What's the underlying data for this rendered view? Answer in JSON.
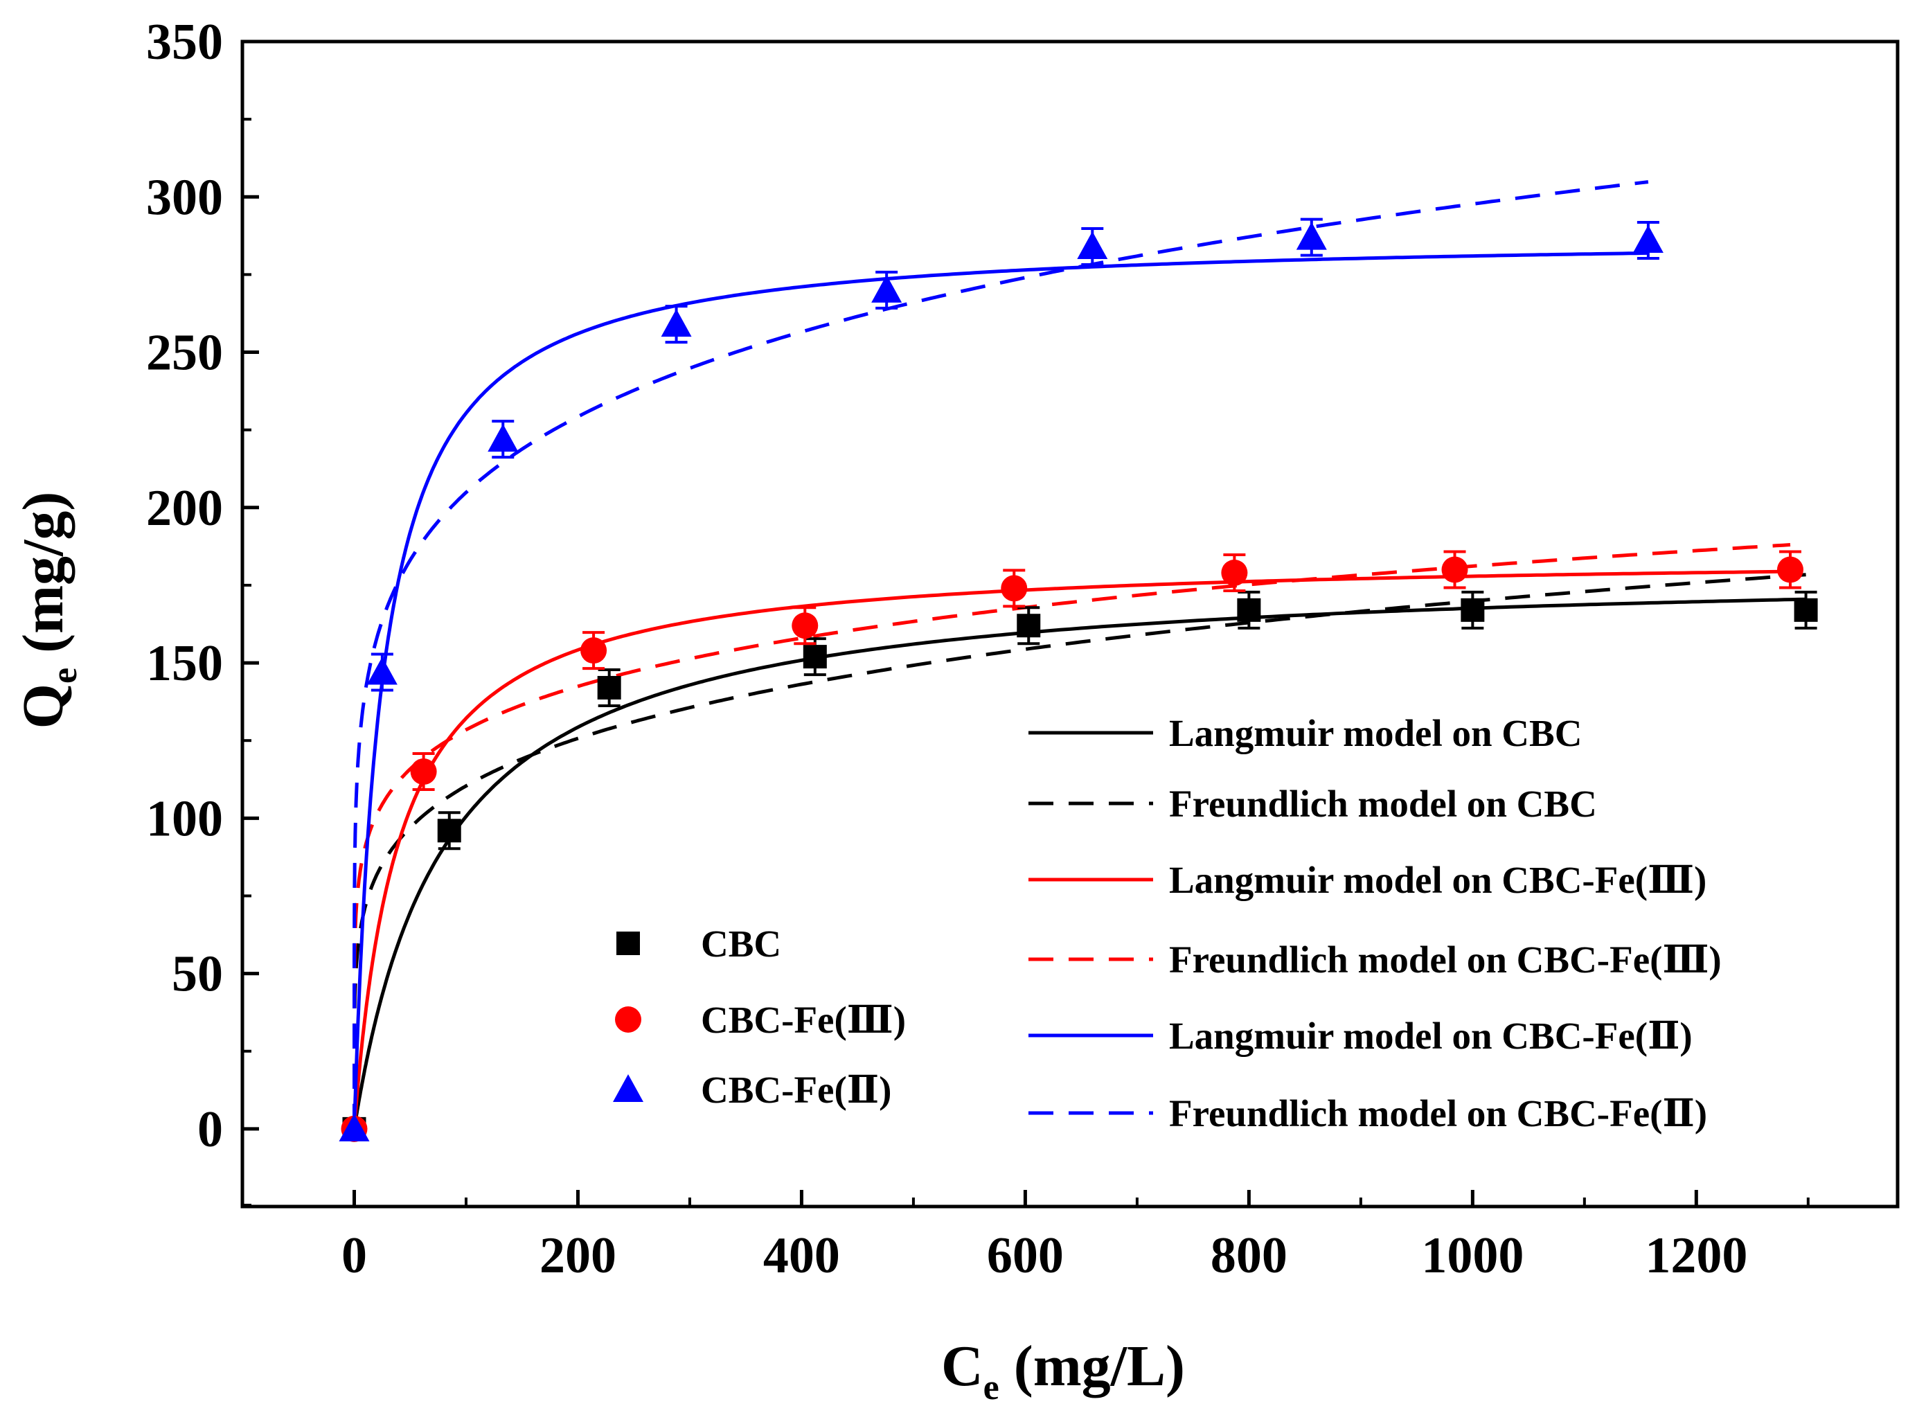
{
  "chart_data": {
    "type": "scatter",
    "title": "",
    "xlabel": "C",
    "xlabel_sub": "e",
    "xlabel_unit": " (mg/L)",
    "ylabel": "Q",
    "ylabel_sub": "e",
    "ylabel_unit": " (mg/g)",
    "xlim": [
      -100,
      1380
    ],
    "ylim": [
      -25,
      350
    ],
    "x_ticks": [
      0,
      200,
      400,
      600,
      800,
      1000,
      1200
    ],
    "x_tick_labels": [
      "0",
      "200",
      "400",
      "600",
      "800",
      "1000",
      "1200"
    ],
    "y_ticks": [
      0,
      50,
      100,
      150,
      200,
      250,
      300,
      350
    ],
    "y_tick_labels": [
      "0",
      "50",
      "100",
      "150",
      "200",
      "250",
      "300",
      "350"
    ],
    "grid": false,
    "series": [
      {
        "name": "CBC",
        "marker": "square",
        "color": "#000000",
        "x": [
          0,
          85,
          228,
          412,
          603,
          800,
          1000,
          1298
        ],
        "y": [
          0,
          96,
          142,
          152,
          162,
          167,
          167,
          167
        ]
      },
      {
        "name": "CBC-Fe(Ⅲ)",
        "marker": "circle",
        "color": "#ff0000",
        "x": [
          0,
          62,
          214,
          403,
          590,
          787,
          984,
          1284
        ],
        "y": [
          0,
          115,
          154,
          162,
          174,
          179,
          180,
          180
        ]
      },
      {
        "name": "CBC-Fe(Ⅱ)",
        "marker": "triangle",
        "color": "#0000ff",
        "x": [
          0,
          25,
          133,
          288,
          476,
          660,
          856,
          1157
        ],
        "y": [
          0,
          147,
          222,
          259,
          270,
          284,
          287,
          286
        ]
      }
    ],
    "fits": [
      {
        "name": "Langmuir model on CBC",
        "model": "langmuir",
        "color": "#000000",
        "dash": false,
        "qmax": 181,
        "K": 0.0125,
        "xmax": 1298
      },
      {
        "name": "Freundlich model on CBC",
        "model": "freundlich",
        "color": "#000000",
        "dash": true,
        "Kf": 46.6,
        "n": 5.34,
        "xmax": 1298
      },
      {
        "name": "Langmuir model on CBC-Fe(Ⅲ)",
        "model": "langmuir",
        "color": "#ff0000",
        "dash": false,
        "qmax": 185,
        "K": 0.025,
        "xmax": 1284
      },
      {
        "name": "Freundlich model on CBC-Fe(Ⅲ)",
        "model": "freundlich",
        "color": "#ff0000",
        "dash": true,
        "Kf": 64.6,
        "n": 6.7,
        "xmax": 1284
      },
      {
        "name": "Langmuir model on CBC-Fe(Ⅱ)",
        "model": "langmuir",
        "color": "#0000ff",
        "dash": false,
        "qmax": 288,
        "K": 0.04,
        "xmax": 1157
      },
      {
        "name": "Freundlich model on CBC-Fe(Ⅱ)",
        "model": "freundlich",
        "color": "#0000ff",
        "dash": true,
        "Kf": 97,
        "n": 6.16,
        "xmax": 1157
      }
    ],
    "legend_markers_position": "middle-left",
    "legend_lines_position": "bottom-right"
  }
}
